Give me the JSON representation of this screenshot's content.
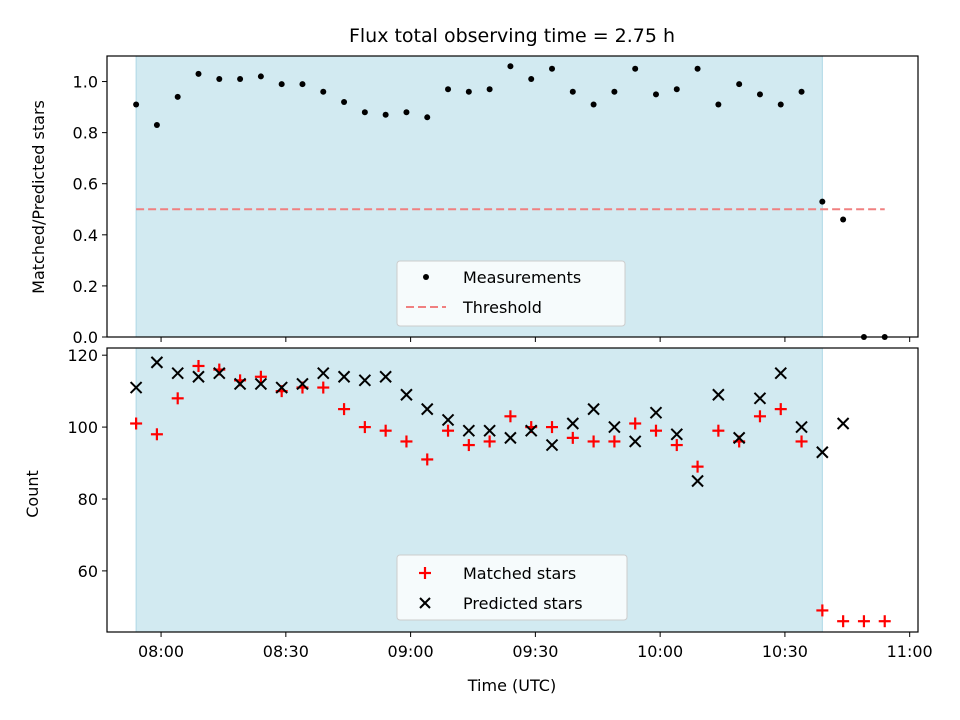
{
  "chart_data": [
    {
      "type": "scatter",
      "title": "Flux total observing time = 2.75 h",
      "ylabel": "Matched/Predicted stars",
      "xlabel": "",
      "ylim": [
        0.0,
        1.1
      ],
      "yticks": [
        0.0,
        0.2,
        0.4,
        0.6,
        0.8,
        1.0
      ],
      "ytick_labels": [
        "0.0",
        "0.2",
        "0.4",
        "0.6",
        "0.8",
        "1.0"
      ],
      "xlim": [
        "07:47",
        "11:02"
      ],
      "observing_window": {
        "start": "07:54",
        "end": "10:39"
      },
      "threshold": {
        "name": "Threshold",
        "value": 0.5,
        "x_start": "07:54",
        "x_end": "10:54",
        "color": "#f08080",
        "style": "dashed"
      },
      "series": [
        {
          "name": "Measurements",
          "color": "#000000",
          "marker": "dot",
          "x": [
            "07:54",
            "07:59",
            "08:04",
            "08:09",
            "08:14",
            "08:19",
            "08:24",
            "08:29",
            "08:34",
            "08:39",
            "08:44",
            "08:49",
            "08:54",
            "08:59",
            "09:04",
            "09:09",
            "09:14",
            "09:19",
            "09:24",
            "09:29",
            "09:34",
            "09:39",
            "09:44",
            "09:49",
            "09:54",
            "09:59",
            "10:04",
            "10:09",
            "10:14",
            "10:19",
            "10:24",
            "10:29",
            "10:34",
            "10:39",
            "10:44",
            "10:49",
            "10:54"
          ],
          "y": [
            0.91,
            0.83,
            0.94,
            1.03,
            1.01,
            1.01,
            1.02,
            0.99,
            0.99,
            0.96,
            0.92,
            0.88,
            0.87,
            0.88,
            0.86,
            0.97,
            0.96,
            0.97,
            1.06,
            1.01,
            1.05,
            0.96,
            0.91,
            0.96,
            1.05,
            0.95,
            0.97,
            1.05,
            0.91,
            0.99,
            0.95,
            0.91,
            0.96,
            0.53,
            0.46,
            0.0,
            0.0
          ]
        }
      ],
      "legend": {
        "location": "lower center",
        "entries": [
          "Measurements",
          "Threshold"
        ]
      },
      "window_color": "#add8e6"
    },
    {
      "type": "scatter",
      "ylabel": "Count",
      "xlabel": "Time (UTC)",
      "ylim": [
        43,
        122
      ],
      "yticks": [
        60,
        80,
        100,
        120
      ],
      "ytick_labels": [
        "60",
        "80",
        "100",
        "120"
      ],
      "xlim": [
        "07:47",
        "11:02"
      ],
      "xticks": [
        "08:00",
        "08:30",
        "09:00",
        "09:30",
        "10:00",
        "10:30",
        "11:00"
      ],
      "xtick_labels": [
        "08:00",
        "08:30",
        "09:00",
        "09:30",
        "10:00",
        "10:30",
        "11:00"
      ],
      "observing_window": {
        "start": "07:54",
        "end": "10:39"
      },
      "series": [
        {
          "name": "Matched stars",
          "color": "#ff0000",
          "marker": "plus",
          "x": [
            "07:54",
            "07:59",
            "08:04",
            "08:09",
            "08:14",
            "08:19",
            "08:24",
            "08:29",
            "08:34",
            "08:39",
            "08:44",
            "08:49",
            "08:54",
            "08:59",
            "09:04",
            "09:09",
            "09:14",
            "09:19",
            "09:24",
            "09:29",
            "09:34",
            "09:39",
            "09:44",
            "09:49",
            "09:54",
            "09:59",
            "10:04",
            "10:09",
            "10:14",
            "10:19",
            "10:24",
            "10:29",
            "10:34",
            "10:39",
            "10:44",
            "10:49",
            "10:54"
          ],
          "y": [
            101,
            98,
            108,
            117,
            116,
            113,
            114,
            110,
            111,
            111,
            105,
            100,
            99,
            96,
            91,
            99,
            95,
            96,
            103,
            100,
            100,
            97,
            96,
            96,
            101,
            99,
            95,
            89,
            99,
            96,
            103,
            105,
            96,
            49,
            46,
            46,
            46
          ]
        },
        {
          "name": "Predicted stars",
          "color": "#000000",
          "marker": "x",
          "x": [
            "07:54",
            "07:59",
            "08:04",
            "08:09",
            "08:14",
            "08:19",
            "08:24",
            "08:29",
            "08:34",
            "08:39",
            "08:44",
            "08:49",
            "08:54",
            "08:59",
            "09:04",
            "09:09",
            "09:14",
            "09:19",
            "09:24",
            "09:29",
            "09:34",
            "09:39",
            "09:44",
            "09:49",
            "09:54",
            "09:59",
            "10:04",
            "10:09",
            "10:14",
            "10:19",
            "10:24",
            "10:29",
            "10:34",
            "10:39",
            "10:44"
          ],
          "y": [
            111,
            118,
            115,
            114,
            115,
            112,
            112,
            111,
            112,
            115,
            114,
            113,
            114,
            109,
            105,
            102,
            99,
            99,
            97,
            99,
            95,
            101,
            105,
            100,
            96,
            104,
            98,
            85,
            109,
            97,
            108,
            115,
            100,
            93,
            101
          ]
        }
      ],
      "legend": {
        "location": "lower center",
        "entries": [
          "Matched stars",
          "Predicted stars"
        ]
      },
      "window_color": "#add8e6"
    }
  ]
}
